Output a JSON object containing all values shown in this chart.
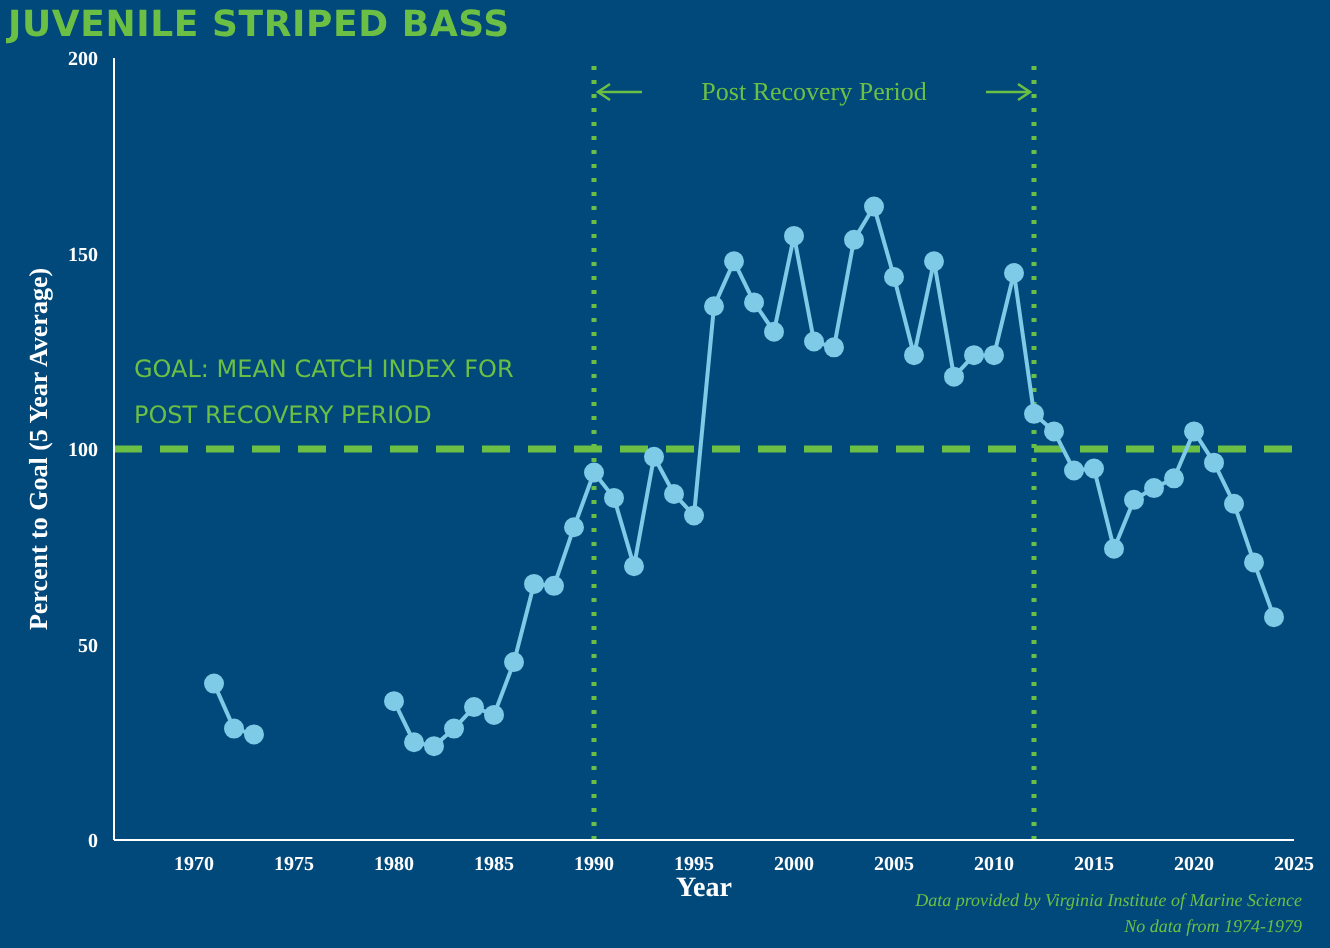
{
  "chart_data": {
    "type": "line",
    "title": "JUVENILE STRIPED BASS",
    "xlabel": "Year",
    "ylabel": "Percent to Goal (5 Year Average)",
    "x": [
      1971,
      1972,
      1973,
      1974,
      1975,
      1976,
      1977,
      1978,
      1979,
      1980,
      1981,
      1982,
      1983,
      1984,
      1985,
      1986,
      1987,
      1988,
      1989,
      1990,
      1991,
      1992,
      1993,
      1994,
      1995,
      1996,
      1997,
      1998,
      1999,
      2000,
      2001,
      2002,
      2003,
      2004,
      2005,
      2006,
      2007,
      2008,
      2009,
      2010,
      2011,
      2012,
      2013,
      2014,
      2015,
      2016,
      2017,
      2018,
      2019,
      2020,
      2021,
      2022,
      2023,
      2024
    ],
    "series": [
      {
        "color": "#7ecbe8",
        "values": [
          40,
          28.5,
          27,
          null,
          null,
          null,
          null,
          null,
          null,
          35.5,
          25,
          24,
          28.5,
          34,
          32,
          45.5,
          65.5,
          65,
          80,
          94,
          87.5,
          70,
          98,
          88.5,
          83,
          136.5,
          148,
          137.5,
          130,
          154.5,
          127.5,
          126,
          153.5,
          162,
          144,
          124,
          148,
          118.5,
          124,
          124,
          145,
          109,
          104.5,
          94.5,
          95,
          74.5,
          87,
          90,
          92.5,
          104.5,
          96.5,
          86,
          71,
          57
        ]
      }
    ],
    "xlim": [
      1966,
      2025
    ],
    "xticks": [
      1970,
      1975,
      1980,
      1985,
      1990,
      1995,
      2000,
      2005,
      2010,
      2015,
      2020,
      2025
    ],
    "ylim": [
      0,
      200
    ],
    "yticks": [
      0,
      50,
      100,
      150,
      200
    ],
    "grid": false,
    "legend": false,
    "marker": "circle",
    "line_style": "solid",
    "ref_lines": [
      {
        "axis": "y",
        "value": 100,
        "label": "GOAL: MEAN CATCH INDEX FOR POST RECOVERY PERIOD",
        "color": "#6cbf45",
        "line_style": "dashed"
      },
      {
        "axis": "x",
        "value": 1990,
        "label": null,
        "color": "#6cbf45",
        "line_style": "dotted"
      },
      {
        "axis": "x",
        "value": 2012,
        "label": null,
        "color": "#6cbf45",
        "line_style": "dotted"
      }
    ],
    "annotations": [
      "Post Recovery Period",
      "Data provided by Virginia Institute of Marine Science",
      "No data from 1974-1979"
    ]
  }
}
